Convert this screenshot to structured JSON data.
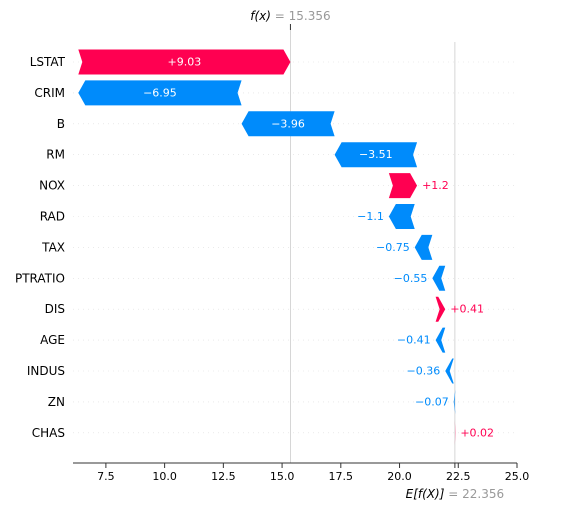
{
  "chart_data": {
    "type": "waterfall",
    "title": "",
    "xlabel": "",
    "ylabel": "",
    "fx_label": "f(x)",
    "fx_eq": "= 15.356",
    "fx_value": 15.356,
    "base_label": "E[f(X)]",
    "base_eq": "= 22.356",
    "base_value": 22.356,
    "xlim": [
      6.1,
      25.0
    ],
    "xticks": [
      7.5,
      10.0,
      12.5,
      15.0,
      17.5,
      20.0,
      22.5,
      25.0
    ],
    "xtick_labels": [
      "7.5",
      "10.0",
      "12.5",
      "15.0",
      "17.5",
      "20.0",
      "22.5",
      "25.0"
    ],
    "features": [
      {
        "name": "LSTAT",
        "value": 9.03,
        "label": "+9.03"
      },
      {
        "name": "CRIM",
        "value": -6.95,
        "label": "−6.95"
      },
      {
        "name": "B",
        "value": -3.96,
        "label": "−3.96"
      },
      {
        "name": "RM",
        "value": -3.51,
        "label": "−3.51"
      },
      {
        "name": "NOX",
        "value": 1.2,
        "label": "+1.2"
      },
      {
        "name": "RAD",
        "value": -1.1,
        "label": "−1.1"
      },
      {
        "name": "TAX",
        "value": -0.75,
        "label": "−0.75"
      },
      {
        "name": "PTRATIO",
        "value": -0.55,
        "label": "−0.55"
      },
      {
        "name": "DIS",
        "value": 0.41,
        "label": "+0.41"
      },
      {
        "name": "AGE",
        "value": -0.41,
        "label": "−0.41"
      },
      {
        "name": "INDUS",
        "value": -0.36,
        "label": "−0.36"
      },
      {
        "name": "ZN",
        "value": -0.07,
        "label": "−0.07"
      },
      {
        "name": "CHAS",
        "value": 0.02,
        "label": "+0.02"
      }
    ],
    "colors": {
      "positive": "#ff0051",
      "negative": "#008bfb",
      "axis": "#333333",
      "muted": "#999999",
      "grid": "#cccccc"
    }
  }
}
